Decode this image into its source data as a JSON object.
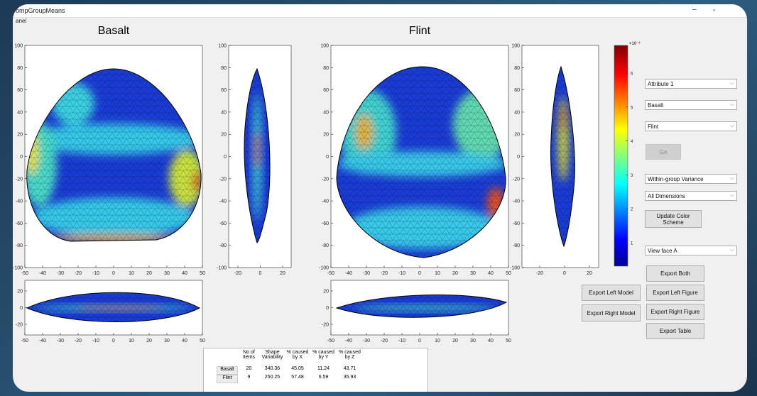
{
  "window": {
    "title": "ompGroupMeans",
    "menu": "anel"
  },
  "plots": [
    {
      "title": "Basalt",
      "main": {
        "xticks": [
          -50,
          -40,
          -30,
          -20,
          -10,
          0,
          10,
          20,
          30,
          40,
          50
        ],
        "yticks": [
          100,
          80,
          60,
          40,
          20,
          0,
          -20,
          -40,
          -60,
          -80,
          -100
        ]
      },
      "side": {
        "xticks": [
          -20,
          0,
          20
        ],
        "yticks": [
          100,
          80,
          60,
          40,
          20,
          0,
          -20,
          -40,
          -60,
          -80,
          -100
        ]
      },
      "bottom": {
        "xticks": [
          -50,
          -40,
          -30,
          -20,
          -10,
          0,
          10,
          20,
          30,
          40,
          50
        ],
        "yticks": [
          20,
          0,
          -20
        ]
      }
    },
    {
      "title": "Flint",
      "main": {
        "xticks": [
          -50,
          -40,
          -30,
          -20,
          -10,
          0,
          10,
          20,
          30,
          40,
          50
        ],
        "yticks": [
          100,
          80,
          60,
          40,
          20,
          0,
          -20,
          -40,
          -60,
          -80,
          -100
        ]
      },
      "side": {
        "xticks": [
          -20,
          0,
          20
        ],
        "yticks": [
          100,
          80,
          60,
          40,
          20,
          0,
          -20,
          -40,
          -60,
          -80,
          -100
        ]
      },
      "bottom": {
        "xticks": [
          -50,
          -40,
          -30,
          -20,
          -10,
          0,
          10,
          20,
          30,
          40,
          50
        ],
        "yticks": [
          20,
          0,
          -20
        ]
      }
    }
  ],
  "colorbar": {
    "exponent": "×10⁻³",
    "ticks": [
      1,
      2,
      3,
      4,
      5,
      6
    ]
  },
  "controls": {
    "attribute": "Attribute 1",
    "left_group": "Basalt",
    "right_group": "Flint",
    "go": "Go",
    "measure": "Within-group Variance",
    "dimensions": "All Dimensions",
    "update": "Update Color Scheme",
    "view": "View face A",
    "export_both": "Export Both",
    "export_left_model": "Export Left Model",
    "export_left_figure": "Export Left Figure",
    "export_right_model": "Export Right Model",
    "export_right_figure": "Export Right Figure",
    "export_table": "Export Table"
  },
  "table": {
    "header": [
      "No of Items",
      "Shape Variability",
      "% caused by X",
      "% caused by Y",
      "% caused by Z"
    ],
    "rows": [
      [
        "Basalt",
        "20",
        "340.36",
        "45.05",
        "11.24",
        "43.71"
      ],
      [
        "Flint",
        "9",
        "250.25",
        "57.48",
        "6.59",
        "35.93"
      ]
    ]
  }
}
